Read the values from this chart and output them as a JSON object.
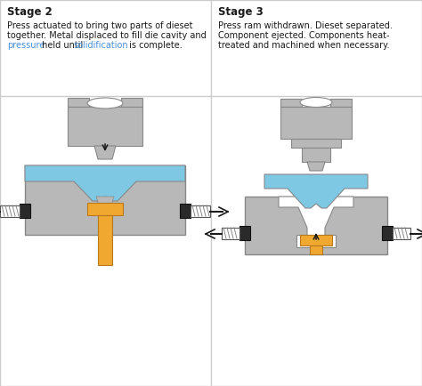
{
  "bg_color": "#ffffff",
  "divider_color": "#cccccc",
  "gray": "#b8b8b8",
  "blue": "#7ec8e3",
  "orange": "#f0a830",
  "black": "#1a1a1a",
  "white": "#ffffff",
  "link_color": "#4a90d9",
  "outline": "#888888",
  "stage2_title": "Stage 2",
  "stage2_text1": "Press actuated to bring two parts of dieset",
  "stage2_text2": "together. Metal displaced to fill die cavity and",
  "stage2_text3_pre": "pressure",
  "stage2_text3_mid": " held until ",
  "stage2_text3_link": "solidification",
  "stage2_text3_post": " is complete.",
  "stage3_title": "Stage 3",
  "stage3_text1": "Press ram withdrawn. Dieset separated.",
  "stage3_text2": "Component ejected. Components heat-",
  "stage3_text3": "treated and machined when necessary."
}
